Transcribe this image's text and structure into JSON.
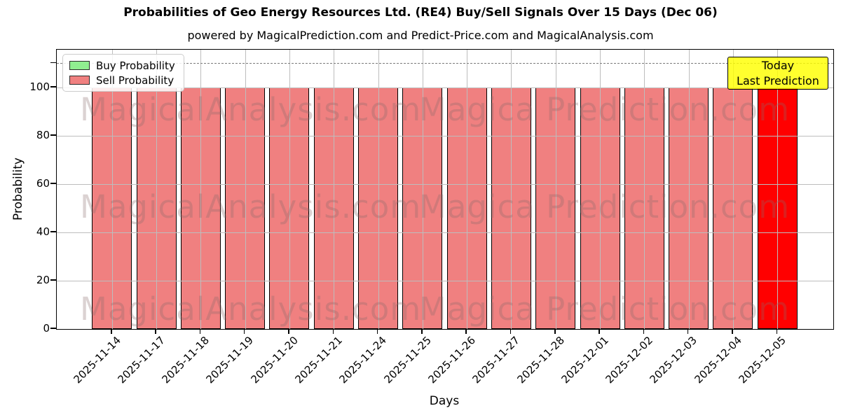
{
  "figure": {
    "title": "Probabilities of Geo Energy Resources Ltd. (RE4) Buy/Sell Signals Over 15 Days (Dec 06)",
    "subtitle": "powered by MagicalPrediction.com and Predict-Price.com and MagicalAnalysis.com"
  },
  "legend": {
    "items": [
      {
        "label": "Buy Probability",
        "color": "#90ee90"
      },
      {
        "label": "Sell Probability",
        "color": "#f08080"
      }
    ]
  },
  "annotation": {
    "line1": "Today",
    "line2": "Last Prediction",
    "bg_color": "#ffff00"
  },
  "watermark": {
    "left_text": "MagicalAnalysis.com",
    "right_text": "Magica Prediction.com",
    "row_offsets": [
      63,
      202,
      348
    ]
  },
  "chart_data": {
    "type": "bar",
    "title": "Probabilities of Geo Energy Resources Ltd. (RE4) Buy/Sell Signals Over 15 Days (Dec 06)",
    "subtitle": "powered by MagicalPrediction.com and Predict-Price.com and MagicalAnalysis.com",
    "xlabel": "Days",
    "ylabel": "Probability",
    "categories": [
      "2025-11-14",
      "2025-11-17",
      "2025-11-18",
      "2025-11-19",
      "2025-11-20",
      "2025-11-21",
      "2025-11-24",
      "2025-11-25",
      "2025-11-26",
      "2025-11-27",
      "2025-11-28",
      "2025-12-01",
      "2025-12-02",
      "2025-12-03",
      "2025-12-04",
      "2025-12-05"
    ],
    "series": [
      {
        "name": "Buy Probability",
        "color": "#90ee90",
        "values": [
          0,
          0,
          0,
          0,
          0,
          0,
          0,
          0,
          0,
          0,
          0,
          0,
          0,
          0,
          0,
          0
        ]
      },
      {
        "name": "Sell Probability",
        "color": "#f08080",
        "values": [
          100,
          100,
          100,
          100,
          100,
          100,
          100,
          100,
          100,
          100,
          100,
          100,
          100,
          100,
          100,
          100
        ]
      }
    ],
    "highlight_bar": {
      "category": "2025-12-05",
      "color": "#ff0000",
      "note": "Today / Last Prediction"
    },
    "ylim": [
      0,
      115.6
    ],
    "yticks": [
      0,
      20,
      40,
      60,
      80,
      100
    ],
    "reference_line": {
      "y": 110,
      "style": "dashed",
      "color": "#808080"
    },
    "grid": true,
    "legend_position": "upper left"
  }
}
